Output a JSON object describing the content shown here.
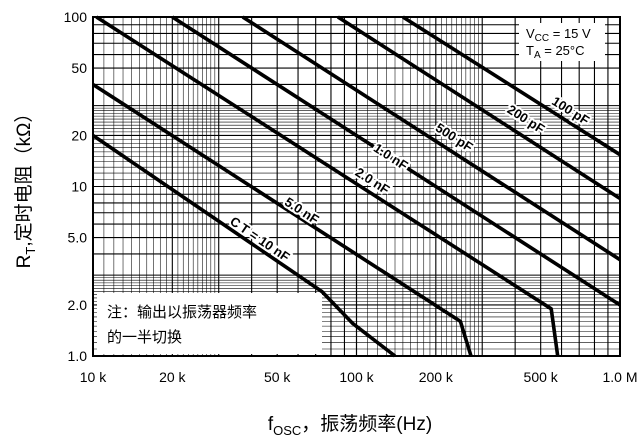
{
  "chart_data": {
    "type": "line",
    "xlabel": {
      "main": "f",
      "sub": "OSC",
      "rest": "，振荡频率(Hz)"
    },
    "ylabel": {
      "main": "R",
      "sub": "T",
      "rest": ",定时电阻（kΩ）"
    },
    "x_scale": "log",
    "y_scale": "log",
    "xlim": [
      10000,
      1000000
    ],
    "ylim": [
      1,
      100
    ],
    "grid": true,
    "x_ticks": [
      {
        "value": 10000,
        "label": "10 k"
      },
      {
        "value": 20000,
        "label": "20 k"
      },
      {
        "value": 50000,
        "label": "50 k"
      },
      {
        "value": 100000,
        "label": "100 k"
      },
      {
        "value": 200000,
        "label": "200 k"
      },
      {
        "value": 500000,
        "label": "500 k"
      },
      {
        "value": 1000000,
        "label": "1.0 M"
      }
    ],
    "y_ticks": [
      {
        "value": 100,
        "label": "100"
      },
      {
        "value": 50,
        "label": "50"
      },
      {
        "value": 20,
        "label": "20"
      },
      {
        "value": 10,
        "label": "10"
      },
      {
        "value": 5,
        "label": "5.0"
      },
      {
        "value": 2,
        "label": "2.0"
      },
      {
        "value": 1,
        "label": "1.0"
      }
    ],
    "conditions": [
      {
        "main": "V",
        "sub": "CC",
        "rest": " = 15 V"
      },
      {
        "main": "T",
        "sub": "A",
        "rest": " = 25°C"
      }
    ],
    "note": [
      "注：输出以振荡器频率",
      "的一半切换"
    ],
    "series": [
      {
        "name": "100 pF",
        "points": [
          [
            150000,
            100
          ],
          [
            1000000,
            15.4
          ]
        ]
      },
      {
        "name": "200 pF",
        "points": [
          [
            85000,
            100
          ],
          [
            1000000,
            8.5
          ]
        ]
      },
      {
        "name": "500 pF",
        "points": [
          [
            37000,
            100
          ],
          [
            1000000,
            3.7
          ]
        ]
      },
      {
        "name": "1.0 nF",
        "points": [
          [
            20000,
            100
          ],
          [
            1000000,
            2.0
          ]
        ]
      },
      {
        "name": "2.0 nF",
        "points": [
          [
            10300,
            100
          ],
          [
            548000,
            1.9
          ],
          [
            580000,
            1.0
          ]
        ]
      },
      {
        "name": "5.0 nF",
        "points": [
          [
            10000,
            40
          ],
          [
            248000,
            1.6
          ],
          [
            272000,
            1.0
          ]
        ]
      },
      {
        "name": "10 nF",
        "points": [
          [
            10000,
            20
          ],
          [
            74000,
            2.4
          ],
          [
            97000,
            1.55
          ],
          [
            140000,
            1.0
          ]
        ]
      }
    ],
    "curve_labels": [
      {
        "series": 0,
        "text": "100 pF",
        "at": [
          650000,
          28
        ]
      },
      {
        "series": 1,
        "text": "200 pF",
        "at": [
          440000,
          25
        ]
      },
      {
        "series": 2,
        "text": "500 pF",
        "at": [
          235000,
          19.5
        ]
      },
      {
        "series": 3,
        "text": "1.0 nF",
        "at": [
          135000,
          15
        ]
      },
      {
        "series": 4,
        "text": "2.0 nF",
        "at": [
          115000,
          10.8
        ]
      },
      {
        "series": 5,
        "text": "5.0 nF",
        "at": [
          62000,
          7.2
        ]
      },
      {
        "series": 6,
        "text": "C T = 10 nF",
        "at": [
          43000,
          4.9
        ]
      }
    ]
  }
}
